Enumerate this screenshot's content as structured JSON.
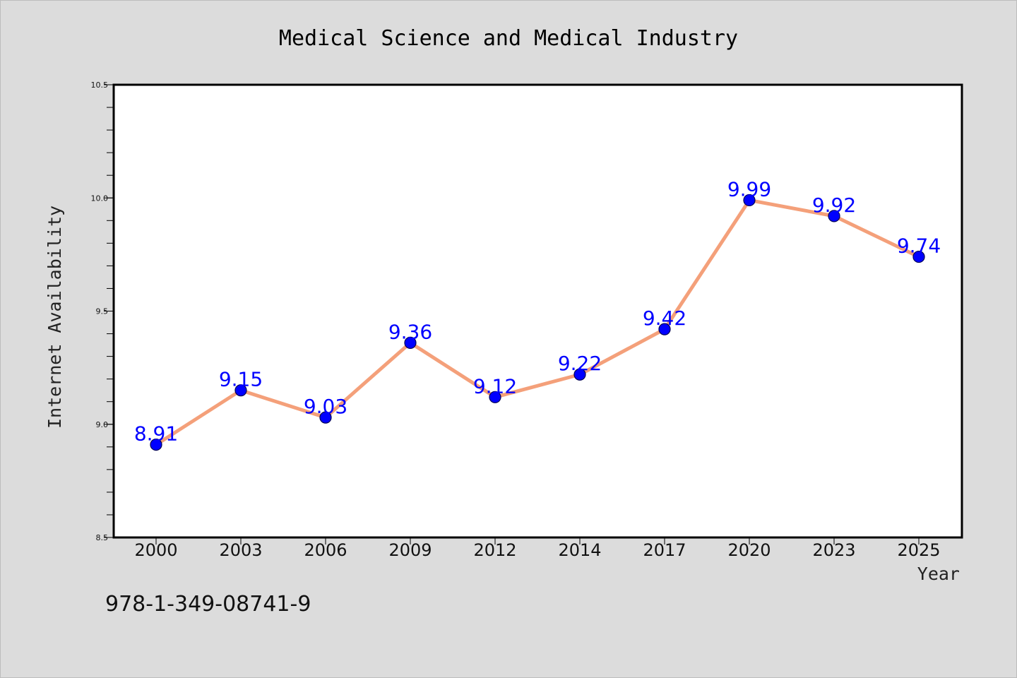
{
  "chart_data": {
    "type": "line",
    "title": "Medical Science and Medical Industry",
    "xlabel": "Year",
    "ylabel": "Internet Availability",
    "categories": [
      "2000",
      "2003",
      "2006",
      "2009",
      "2012",
      "2014",
      "2017",
      "2020",
      "2023",
      "2025"
    ],
    "series": [
      {
        "values": [
          8.91,
          9.15,
          9.03,
          9.36,
          9.12,
          9.22,
          9.42,
          9.99,
          9.92,
          9.74
        ],
        "data_labels": [
          "8.91",
          "9.15",
          "9.03",
          "9.36",
          "9.12",
          "9.22",
          "9.42",
          "9.99",
          "9.92",
          "9.74"
        ],
        "line_color": "#f4a07a",
        "marker_color": "#0000ff"
      }
    ],
    "ylim": [
      8.5,
      10.5
    ],
    "yticks": [
      "8.5",
      "9.0",
      "9.5",
      "10.0",
      "10.5"
    ],
    "grid": false,
    "legend": "none"
  },
  "annotation": {
    "isbn_text": "978-1-349-08741-9"
  },
  "colors": {
    "background": "#dcdcdc",
    "plot_area": "#ffffff",
    "line": "#f4a07a",
    "marker": "#0000ff",
    "label": "#0000ff"
  }
}
